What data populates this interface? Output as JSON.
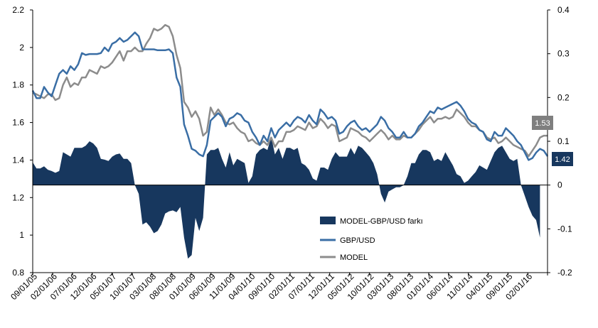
{
  "chart_data": {
    "type": "line",
    "x_tick_labels": [
      "09/01/05",
      "02/01/06",
      "07/01/06",
      "12/01/06",
      "05/01/07",
      "10/01/07",
      "03/01/08",
      "08/01/08",
      "01/01/09",
      "06/01/09",
      "11/01/09",
      "04/01/10",
      "09/01/10",
      "02/01/11",
      "07/01/11",
      "12/01/11",
      "05/01/12",
      "10/01/12",
      "03/01/13",
      "08/01/13",
      "01/01/14",
      "06/01/14",
      "11/01/14",
      "04/01/15",
      "09/01/15",
      "02/01/16"
    ],
    "left_axis": {
      "ylim": [
        0.8,
        2.2
      ],
      "ticks": [
        "0.8",
        "1",
        "1.2",
        "1.4",
        "1.6",
        "1.8",
        "2",
        "2.2"
      ]
    },
    "right_axis": {
      "ylim": [
        -0.2,
        0.4
      ],
      "ticks": [
        "-0.2",
        "-0.1",
        "0",
        "0.1",
        "0.2",
        "0.3",
        "0.4"
      ]
    },
    "grid": false,
    "legend_position": "lower-right inside plot",
    "series": [
      {
        "name": "MODEL-GBP/USD farkı",
        "type": "area",
        "axis": "right",
        "color": "#17375e",
        "values": [
          0.052,
          0.038,
          0.038,
          0.043,
          0.035,
          0.032,
          0.028,
          0.032,
          0.075,
          0.07,
          0.065,
          0.085,
          0.085,
          0.085,
          0.09,
          0.1,
          0.095,
          0.085,
          0.06,
          0.058,
          0.055,
          0.065,
          0.07,
          0.072,
          0.06,
          0.06,
          0.05,
          0.0,
          -0.02,
          -0.09,
          -0.085,
          -0.095,
          -0.11,
          -0.105,
          -0.09,
          -0.065,
          -0.06,
          -0.058,
          -0.062,
          -0.05,
          -0.12,
          -0.168,
          -0.16,
          -0.075,
          -0.105,
          -0.075,
          0.07,
          0.08,
          0.08,
          0.085,
          0.06,
          0.04,
          0.075,
          0.045,
          0.06,
          0.055,
          0.05,
          0.005,
          0.02,
          0.07,
          0.08,
          0.085,
          0.08,
          0.11,
          0.07,
          0.085,
          0.06,
          0.085,
          0.085,
          0.08,
          0.085,
          0.05,
          0.045,
          0.035,
          0.015,
          0.01,
          0.04,
          0.04,
          0.035,
          0.06,
          0.075,
          0.065,
          0.065,
          0.065,
          0.085,
          0.07,
          0.09,
          0.085,
          0.075,
          0.065,
          0.05,
          0.025,
          -0.02,
          -0.04,
          -0.015,
          -0.01,
          -0.005,
          -0.005,
          0.0,
          0.02,
          0.05,
          0.05,
          0.07,
          0.08,
          0.08,
          0.075,
          0.055,
          0.06,
          0.055,
          0.075,
          0.06,
          0.045,
          0.025,
          0.02,
          0.005,
          0.01,
          0.02,
          0.03,
          0.045,
          0.04,
          0.035,
          0.055,
          0.075,
          0.085,
          0.09,
          0.075,
          0.06,
          0.055,
          0.06,
          0.0,
          -0.025,
          -0.05,
          -0.07,
          -0.08,
          -0.12
        ]
      },
      {
        "name": "GBP/USD",
        "type": "line",
        "axis": "left",
        "color": "#3a6ea5",
        "values": [
          1.77,
          1.73,
          1.73,
          1.79,
          1.76,
          1.74,
          1.8,
          1.86,
          1.88,
          1.86,
          1.9,
          1.88,
          1.91,
          1.97,
          1.96,
          1.965,
          1.965,
          1.965,
          1.97,
          2.0,
          1.98,
          2.02,
          2.03,
          2.05,
          2.03,
          2.04,
          2.06,
          2.08,
          2.06,
          1.99,
          1.99,
          1.99,
          1.99,
          1.985,
          1.985,
          1.985,
          1.99,
          1.97,
          1.84,
          1.79,
          1.59,
          1.53,
          1.46,
          1.45,
          1.43,
          1.42,
          1.48,
          1.61,
          1.63,
          1.65,
          1.63,
          1.58,
          1.62,
          1.63,
          1.65,
          1.64,
          1.61,
          1.6,
          1.55,
          1.52,
          1.48,
          1.53,
          1.5,
          1.57,
          1.52,
          1.56,
          1.58,
          1.6,
          1.58,
          1.61,
          1.63,
          1.62,
          1.6,
          1.64,
          1.61,
          1.59,
          1.67,
          1.65,
          1.62,
          1.63,
          1.61,
          1.54,
          1.55,
          1.58,
          1.6,
          1.61,
          1.58,
          1.56,
          1.57,
          1.55,
          1.57,
          1.59,
          1.63,
          1.61,
          1.57,
          1.55,
          1.52,
          1.52,
          1.55,
          1.52,
          1.52,
          1.54,
          1.58,
          1.6,
          1.63,
          1.66,
          1.65,
          1.68,
          1.67,
          1.68,
          1.69,
          1.7,
          1.71,
          1.69,
          1.66,
          1.62,
          1.6,
          1.59,
          1.56,
          1.55,
          1.51,
          1.5,
          1.55,
          1.53,
          1.53,
          1.57,
          1.55,
          1.53,
          1.5,
          1.48,
          1.44,
          1.4,
          1.41,
          1.44,
          1.46,
          1.45,
          1.42
        ]
      },
      {
        "name": "MODEL",
        "type": "line",
        "axis": "left",
        "color": "#8c8c8c",
        "values": [
          1.76,
          1.75,
          1.74,
          1.73,
          1.75,
          1.75,
          1.72,
          1.73,
          1.8,
          1.84,
          1.79,
          1.81,
          1.8,
          1.84,
          1.84,
          1.88,
          1.87,
          1.86,
          1.9,
          1.89,
          1.9,
          1.92,
          1.95,
          1.98,
          1.93,
          1.98,
          1.98,
          2.0,
          1.98,
          1.98,
          2.02,
          2.05,
          2.1,
          2.09,
          2.1,
          2.12,
          2.11,
          2.06,
          1.96,
          1.89,
          1.71,
          1.68,
          1.63,
          1.66,
          1.62,
          1.53,
          1.55,
          1.68,
          1.64,
          1.67,
          1.64,
          1.6,
          1.59,
          1.6,
          1.57,
          1.55,
          1.54,
          1.5,
          1.51,
          1.49,
          1.48,
          1.5,
          1.48,
          1.52,
          1.47,
          1.5,
          1.5,
          1.55,
          1.55,
          1.56,
          1.58,
          1.57,
          1.56,
          1.6,
          1.57,
          1.58,
          1.62,
          1.6,
          1.57,
          1.59,
          1.58,
          1.5,
          1.51,
          1.52,
          1.57,
          1.56,
          1.55,
          1.53,
          1.52,
          1.5,
          1.52,
          1.54,
          1.56,
          1.54,
          1.51,
          1.53,
          1.51,
          1.51,
          1.53,
          1.52,
          1.52,
          1.54,
          1.56,
          1.59,
          1.61,
          1.63,
          1.6,
          1.62,
          1.62,
          1.63,
          1.62,
          1.63,
          1.67,
          1.65,
          1.63,
          1.6,
          1.58,
          1.58,
          1.56,
          1.55,
          1.52,
          1.51,
          1.52,
          1.49,
          1.5,
          1.52,
          1.5,
          1.48,
          1.47,
          1.46,
          1.45,
          1.42,
          1.45,
          1.48,
          1.52,
          1.53,
          1.53
        ]
      }
    ],
    "annotations": [
      {
        "label": "1.53",
        "series": "MODEL",
        "color": "#7f7f7f"
      },
      {
        "label": "1.42",
        "series": "GBP/USD",
        "color": "#17375e"
      }
    ]
  }
}
